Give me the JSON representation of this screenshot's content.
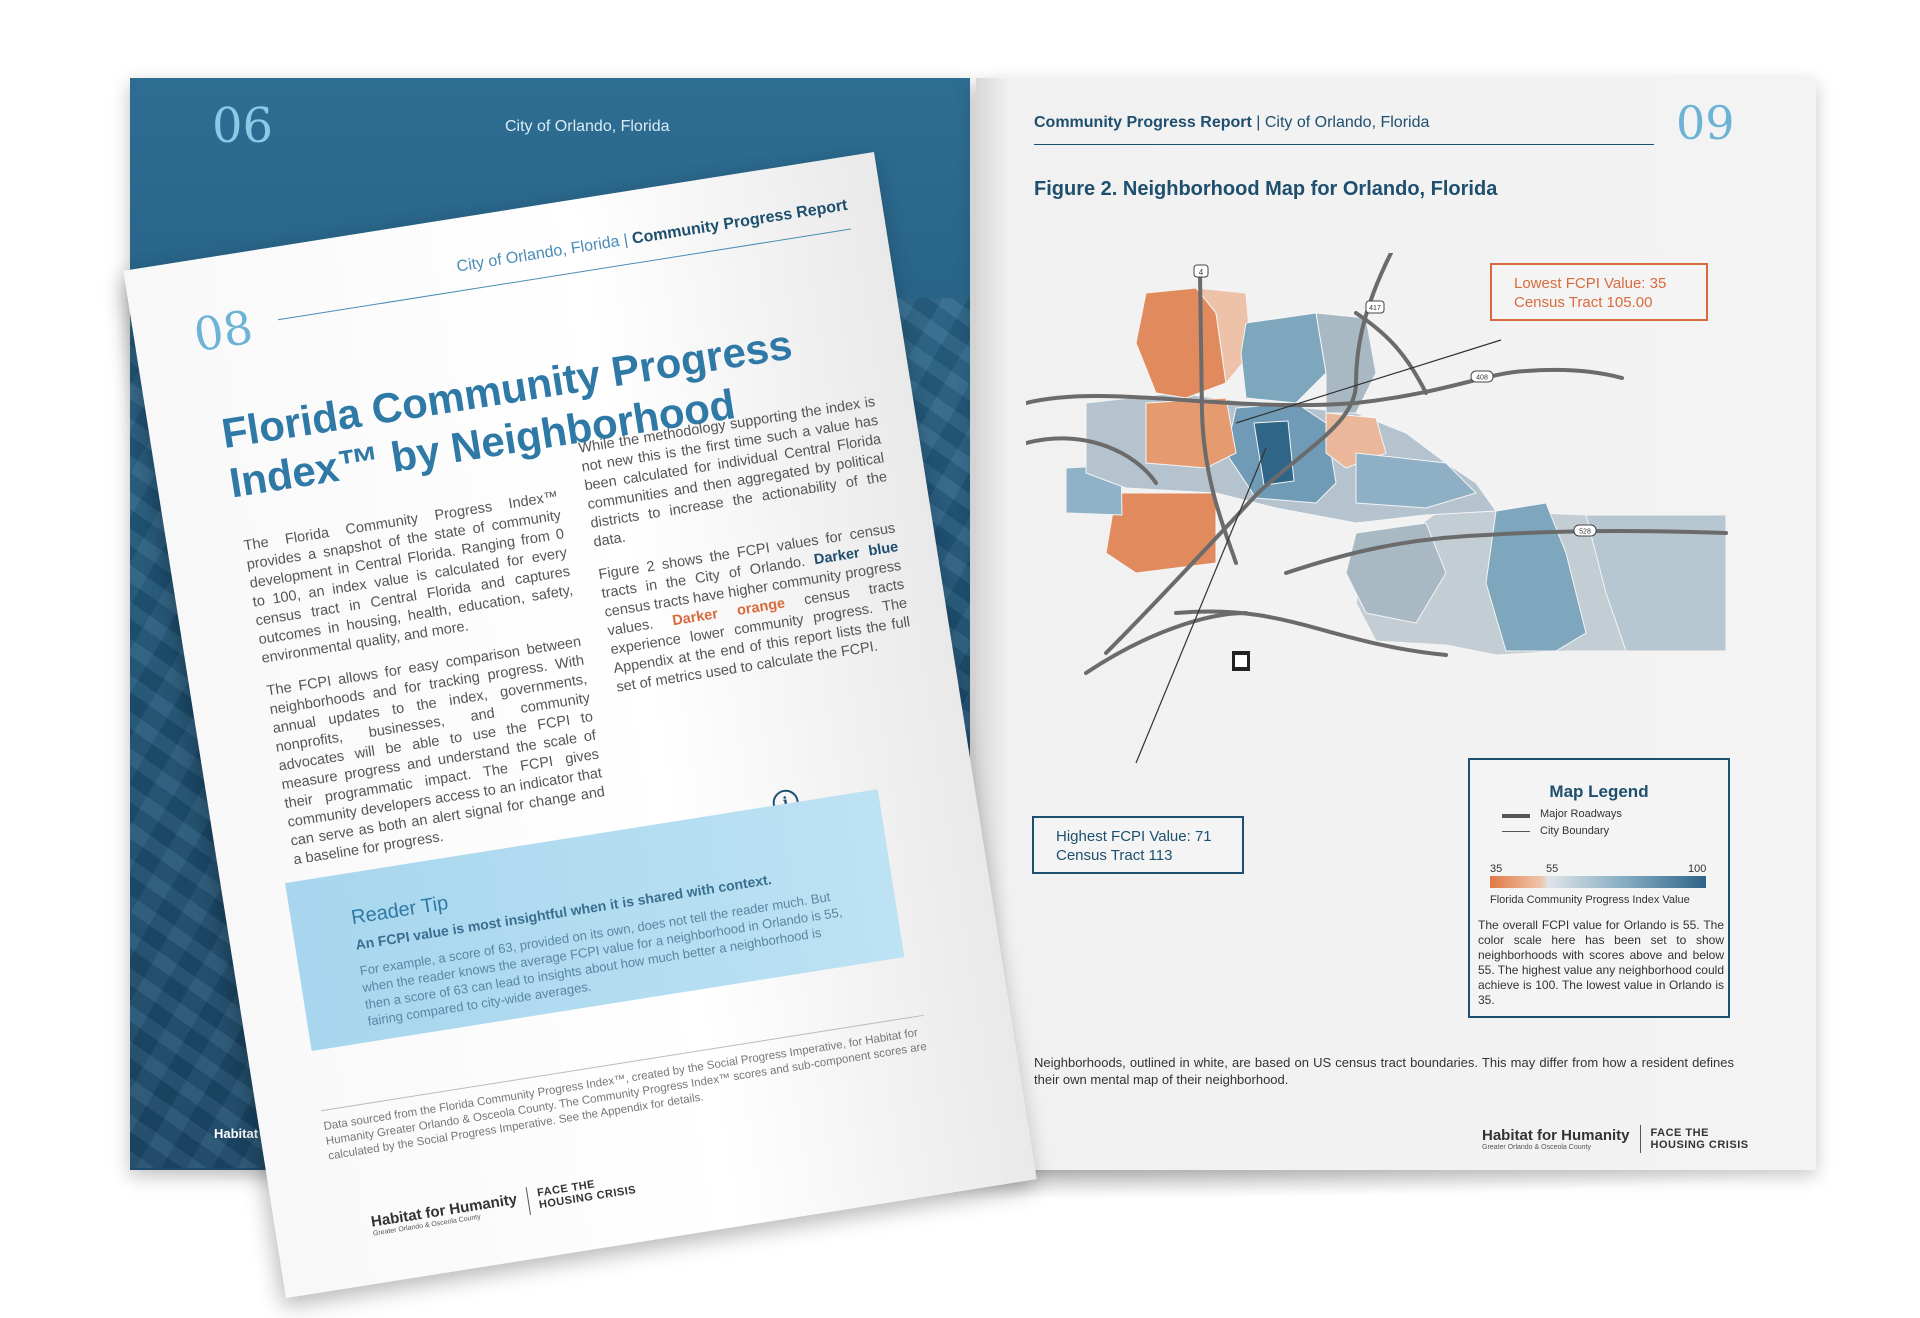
{
  "left_back_page": {
    "page_number": "06",
    "header": "City of Orlando, Florida",
    "logo": "Habitat for"
  },
  "front_page": {
    "page_number": "08",
    "header_city": "City of Orlando, Florida",
    "header_sep": " | ",
    "header_report": "Community Progress Report",
    "title": "Florida Community Progress Index™ by Neighborhood",
    "col1_p1": "The Florida Community Progress Index™ provides a snapshot of the state of community development in Central Florida. Ranging from 0 to 100, an index value is calculated for every census tract in Central Florida and captures outcomes in housing, health, education, safety, environmental quality, and more.",
    "col1_p2": "The FCPI allows for easy comparison between neighborhoods and for tracking progress. With annual updates to the index, governments, nonprofits, businesses, and community advocates will be able to use the FCPI to measure progress and understand the scale of their programmatic impact. The FCPI gives community developers access to an indicator that can serve as both an alert signal for change and a baseline for progress.",
    "col2_p1": "While the methodology supporting the index is not new this is the first time such a value has been calculated for individual Central Florida communities and then aggregated by political districts to increase the actionability of the data.",
    "col2_p2_a": "Figure 2 shows the FCPI values for census tracts in the City of Orlando. ",
    "col2_p2_blue": "Darker blue",
    "col2_p2_b": " census tracts have higher community progress values. ",
    "col2_p2_orange": "Darker orange",
    "col2_p2_c": " census tracts experience lower community progress. The Appendix at the end of this report lists the full set of metrics used to calculate the FCPI.",
    "tip_title": "Reader Tip",
    "tip_subtitle": "An FCPI value is most insightful when it is shared with context.",
    "tip_body": "For example, a score of 63, provided on its own, does not tell the reader much. But when the reader knows the average FCPI value for a neighborhood in Orlando is 55, then a score of 63 can lead to insights about how much better a neighborhood is fairing compared to city-wide averages.",
    "info_glyph": "i",
    "footer": "Data sourced from the Florida Community Progress Index™, created by the Social Progress Imperative, for Habitat for Humanity Greater Orlando & Osceola County. The Community Progress Index™ scores and sub-component scores are calculated by the Social Progress Imperative. See the Appendix for details.",
    "logo_name": "Habitat for Humanity",
    "logo_sub": "Greater Orlando & Osceola County",
    "logo_campaign_1": "FACE THE",
    "logo_campaign_2": "HOUSING CRISIS"
  },
  "right_page": {
    "page_number": "09",
    "header_report": "Community Progress Report",
    "header_sep": " | ",
    "header_city": "City of Orlando, Florida",
    "figure_title": "Figure 2. Neighborhood Map for Orlando, Florida",
    "callout_low_1": "Lowest FCPI Value: 35",
    "callout_low_2": "Census Tract 105.00",
    "callout_high_1": "Highest FCPI Value: 71",
    "callout_high_2": "Census Tract 113",
    "road_shields": [
      "4",
      "417",
      "408",
      "528"
    ],
    "legend": {
      "title": "Map Legend",
      "major_roadways": "Major Roadways",
      "city_boundary": "City Boundary",
      "scale_min": "35",
      "scale_mid": "55",
      "scale_max": "100",
      "scale_label": "Florida Community Progress Index Value",
      "description": "The overall FCPI value for Orlando is 55. The color scale here has been set to show neighborhoods with scores above and below 55. The highest value any neighborhood could achieve is 100. The lowest value in Orlando is 35."
    },
    "footnote": "Neighborhoods, outlined in white, are based on US census tract boundaries. This may differ from how a resident defines their own mental map of their neighborhood.",
    "logo_name": "Habitat for Humanity",
    "logo_sub": "Greater Orlando & Osceola County",
    "logo_campaign_1": "FACE THE",
    "logo_campaign_2": "HOUSING CRISIS"
  },
  "colors": {
    "navy": "#1e4f6e",
    "light_blue": "#6cb3d6",
    "orange": "#d96a3c",
    "tip_bg": "#b3dcf0"
  }
}
